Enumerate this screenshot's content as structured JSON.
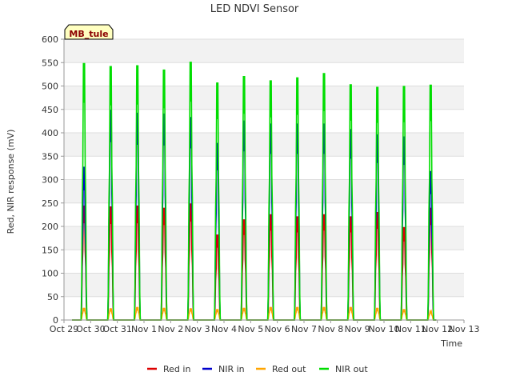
{
  "chart_data": {
    "type": "line",
    "title": "LED NDVI Sensor",
    "xlabel": "Time",
    "ylabel": "Red, NIR response (mV)",
    "badge": "MB_tule",
    "ylim": [
      0,
      600
    ],
    "yticks": [
      0,
      50,
      100,
      150,
      200,
      250,
      300,
      350,
      400,
      450,
      500,
      550,
      600
    ],
    "xlim": [
      0,
      15
    ],
    "xticks": [
      {
        "x": 0,
        "label": "Oct 29"
      },
      {
        "x": 1,
        "label": "Oct 30"
      },
      {
        "x": 2,
        "label": "Oct 31"
      },
      {
        "x": 3,
        "label": "Nov 1"
      },
      {
        "x": 4,
        "label": "Nov 2"
      },
      {
        "x": 5,
        "label": "Nov 3"
      },
      {
        "x": 6,
        "label": "Nov 4"
      },
      {
        "x": 7,
        "label": "Nov 5"
      },
      {
        "x": 8,
        "label": "Nov 6"
      },
      {
        "x": 9,
        "label": "Nov 7"
      },
      {
        "x": 10,
        "label": "Nov 8"
      },
      {
        "x": 11,
        "label": "Nov 9"
      },
      {
        "x": 12,
        "label": "Nov 10"
      },
      {
        "x": 13,
        "label": "Nov 11"
      },
      {
        "x": 14,
        "label": "Nov 12"
      },
      {
        "x": 15,
        "label": "Nov 13"
      }
    ],
    "peak_days": [
      0.75,
      1.75,
      2.75,
      3.75,
      4.75,
      5.75,
      6.75,
      7.75,
      8.75,
      9.75,
      10.75,
      11.75,
      12.75,
      13.75
    ],
    "series": [
      {
        "name": "Red in",
        "color": "#dd0000",
        "peaks": [
          265,
          263,
          265,
          260,
          270,
          198,
          233,
          245,
          240,
          245,
          240,
          250,
          215,
          260
        ]
      },
      {
        "name": "NIR in",
        "color": "#0000cc",
        "peaks": [
          355,
          487,
          480,
          478,
          470,
          410,
          462,
          455,
          455,
          455,
          442,
          430,
          425,
          345
        ]
      },
      {
        "name": "Red out",
        "color": "#ffa500",
        "peaks": [
          28,
          27,
          30,
          28,
          27,
          25,
          28,
          30,
          30,
          30,
          30,
          28,
          25,
          20
        ]
      },
      {
        "name": "NIR out",
        "color": "#00dd00",
        "peaks": [
          595,
          588,
          590,
          580,
          598,
          550,
          565,
          555,
          562,
          572,
          546,
          540,
          542,
          545
        ]
      }
    ],
    "grid": true,
    "legend_position": "bottom"
  }
}
